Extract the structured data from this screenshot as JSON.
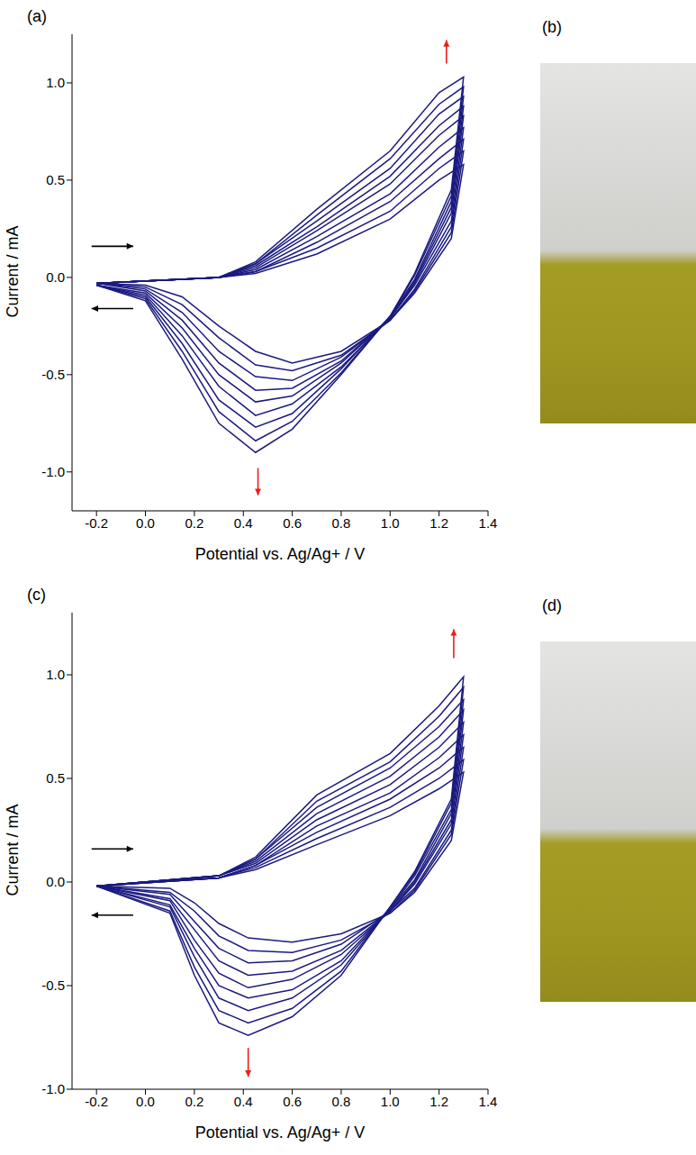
{
  "chart_data": [
    {
      "type": "line",
      "title": "(a)",
      "xlabel": "Potential vs. Ag/Ag+ / V",
      "ylabel": "Current / mA",
      "color": "#1a1a80",
      "line_style": "solid",
      "xlim": [
        -0.3,
        1.4
      ],
      "xticks": [
        -0.2,
        {
          "value": 0,
          "label": "0.0"
        },
        0.2,
        0.4,
        0.6,
        0.8,
        {
          "value": 1,
          "label": "1.0"
        },
        1.2,
        1.4
      ],
      "ylim": [
        -1.2,
        1.25
      ],
      "yticks": [
        {
          "value": -1,
          "label": "-1.0"
        },
        -0.5,
        {
          "value": 0,
          "label": "0.0"
        },
        0.5,
        {
          "value": 1,
          "label": "1.0"
        }
      ],
      "x": [
        -0.2,
        0.3,
        0.45,
        0.7,
        1.0,
        1.2,
        1.3,
        1.25,
        1.1,
        1.0,
        0.8,
        0.6,
        0.45,
        0.3,
        0.15,
        0.0,
        -0.2
      ],
      "series": [
        {
          "values": [
            -0.03,
            0.0,
            0.02,
            0.12,
            0.3,
            0.5,
            0.58,
            0.2,
            -0.08,
            -0.22,
            -0.38,
            -0.44,
            -0.38,
            -0.25,
            -0.1,
            -0.04,
            -0.03
          ]
        },
        {
          "values": [
            -0.03,
            0.0,
            0.03,
            0.15,
            0.34,
            0.56,
            0.65,
            0.23,
            -0.07,
            -0.22,
            -0.4,
            -0.48,
            -0.45,
            -0.31,
            -0.14,
            -0.05,
            -0.03
          ]
        },
        {
          "values": [
            -0.03,
            0.0,
            0.03,
            0.18,
            0.39,
            0.61,
            0.71,
            0.26,
            -0.06,
            -0.22,
            -0.41,
            -0.53,
            -0.51,
            -0.38,
            -0.18,
            -0.06,
            -0.03
          ]
        },
        {
          "values": [
            -0.03,
            0.0,
            0.04,
            0.21,
            0.43,
            0.67,
            0.77,
            0.29,
            -0.04,
            -0.21,
            -0.43,
            -0.57,
            -0.58,
            -0.44,
            -0.22,
            -0.07,
            -0.03
          ]
        },
        {
          "values": [
            -0.03,
            0.0,
            0.05,
            0.24,
            0.48,
            0.73,
            0.83,
            0.33,
            -0.03,
            -0.21,
            -0.44,
            -0.61,
            -0.64,
            -0.5,
            -0.26,
            -0.08,
            -0.04
          ]
        },
        {
          "values": [
            -0.03,
            0.0,
            0.06,
            0.26,
            0.52,
            0.78,
            0.88,
            0.36,
            -0.02,
            -0.21,
            -0.46,
            -0.65,
            -0.71,
            -0.56,
            -0.3,
            -0.09,
            -0.04
          ]
        },
        {
          "values": [
            -0.03,
            0.0,
            0.07,
            0.29,
            0.56,
            0.84,
            0.93,
            0.39,
            -0.01,
            -0.2,
            -0.47,
            -0.7,
            -0.77,
            -0.63,
            -0.34,
            -0.1,
            -0.04
          ]
        },
        {
          "values": [
            -0.03,
            0.0,
            0.07,
            0.32,
            0.61,
            0.89,
            0.98,
            0.42,
            0.01,
            -0.2,
            -0.49,
            -0.74,
            -0.84,
            -0.69,
            -0.38,
            -0.11,
            -0.04
          ]
        },
        {
          "values": [
            -0.03,
            0.0,
            0.08,
            0.35,
            0.65,
            0.95,
            1.03,
            0.45,
            0.02,
            -0.2,
            -0.5,
            -0.78,
            -0.9,
            -0.75,
            -0.42,
            -0.12,
            -0.04
          ]
        }
      ]
    },
    {
      "type": "line",
      "title": "(c)",
      "xlabel": "Potential vs. Ag/Ag+ / V",
      "ylabel": "Current / mA",
      "color": "#1a1a80",
      "line_style": "solid",
      "xlim": [
        -0.3,
        1.4
      ],
      "xticks": [
        -0.2,
        {
          "value": 0,
          "label": "0.0"
        },
        0.2,
        0.4,
        0.6,
        0.8,
        {
          "value": 1,
          "label": "1.0"
        },
        1.2,
        1.4
      ],
      "ylim": [
        -1.0,
        1.3
      ],
      "yticks": [
        {
          "value": -1,
          "label": "-1.0"
        },
        -0.5,
        {
          "value": 0,
          "label": "0.0"
        },
        0.5,
        {
          "value": 1,
          "label": "1.0"
        }
      ],
      "x": [
        -0.2,
        0.3,
        0.45,
        0.7,
        1.0,
        1.2,
        1.3,
        1.25,
        1.1,
        1.0,
        0.8,
        0.6,
        0.42,
        0.3,
        0.2,
        0.1,
        -0.2
      ],
      "series": [
        {
          "values": [
            -0.02,
            0.02,
            0.06,
            0.18,
            0.32,
            0.45,
            0.53,
            0.2,
            -0.05,
            -0.15,
            -0.25,
            -0.29,
            -0.27,
            -0.2,
            -0.1,
            -0.03,
            -0.02
          ]
        },
        {
          "values": [
            -0.02,
            0.02,
            0.07,
            0.21,
            0.36,
            0.5,
            0.59,
            0.23,
            -0.04,
            -0.15,
            -0.28,
            -0.34,
            -0.33,
            -0.26,
            -0.14,
            -0.05,
            -0.02
          ]
        },
        {
          "values": [
            -0.02,
            0.02,
            0.08,
            0.24,
            0.4,
            0.55,
            0.65,
            0.25,
            -0.03,
            -0.14,
            -0.3,
            -0.38,
            -0.39,
            -0.32,
            -0.19,
            -0.06,
            -0.02
          ]
        },
        {
          "values": [
            -0.02,
            0.02,
            0.08,
            0.27,
            0.43,
            0.6,
            0.71,
            0.28,
            -0.01,
            -0.14,
            -0.33,
            -0.43,
            -0.45,
            -0.38,
            -0.23,
            -0.08,
            -0.02
          ]
        },
        {
          "values": [
            -0.02,
            0.03,
            0.09,
            0.3,
            0.47,
            0.65,
            0.77,
            0.3,
            0.0,
            -0.14,
            -0.35,
            -0.47,
            -0.51,
            -0.44,
            -0.28,
            -0.09,
            -0.02
          ]
        },
        {
          "values": [
            -0.02,
            0.03,
            0.1,
            0.33,
            0.51,
            0.7,
            0.83,
            0.33,
            0.01,
            -0.13,
            -0.38,
            -0.52,
            -0.56,
            -0.5,
            -0.32,
            -0.11,
            -0.02
          ]
        },
        {
          "values": [
            -0.02,
            0.03,
            0.11,
            0.36,
            0.55,
            0.75,
            0.88,
            0.35,
            0.03,
            -0.13,
            -0.4,
            -0.56,
            -0.62,
            -0.56,
            -0.36,
            -0.12,
            -0.02
          ]
        },
        {
          "values": [
            -0.02,
            0.03,
            0.11,
            0.39,
            0.58,
            0.8,
            0.94,
            0.38,
            0.04,
            -0.12,
            -0.43,
            -0.61,
            -0.68,
            -0.62,
            -0.41,
            -0.14,
            -0.02
          ]
        },
        {
          "values": [
            -0.02,
            0.03,
            0.12,
            0.42,
            0.62,
            0.85,
            0.99,
            0.4,
            0.05,
            -0.12,
            -0.45,
            -0.65,
            -0.74,
            -0.68,
            -0.45,
            -0.15,
            -0.02
          ]
        }
      ]
    }
  ],
  "photos": [
    {
      "label": "(b)"
    },
    {
      "label": "(d)"
    }
  ]
}
